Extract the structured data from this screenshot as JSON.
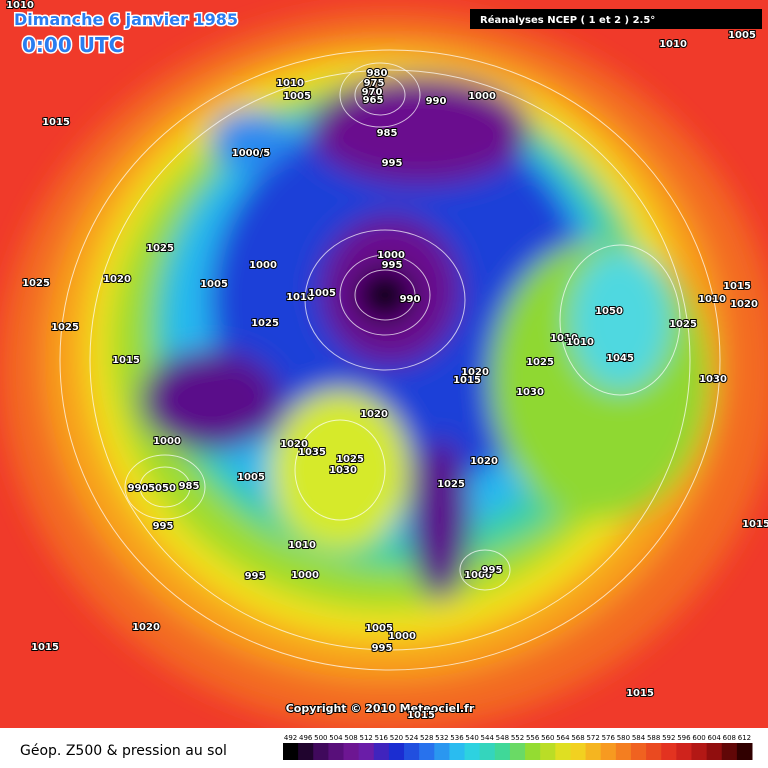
{
  "header": {
    "date": "Dimanche 6 janvier 1985",
    "time": "0:00 UTC",
    "source": "Réanalyses NCEP ( 1 et 2 ) 2.5°"
  },
  "copyright": "Copyright © 2010 Meteociel.fr",
  "footer": {
    "title": "Géop. Z500 & pression au sol"
  },
  "scale": {
    "labels": [
      492,
      496,
      500,
      504,
      508,
      512,
      516,
      520,
      524,
      528,
      532,
      536,
      540,
      544,
      548,
      552,
      556,
      560,
      564,
      568,
      572,
      576,
      580,
      584,
      588,
      592,
      596,
      600,
      604,
      608,
      612
    ]
  },
  "isobar_labels": [
    "1010",
    "1005",
    "1010",
    "1015",
    "1010",
    "1005",
    "980",
    "975",
    "970",
    "965",
    "990",
    "1000",
    "985",
    "995",
    "1000/5",
    "1025",
    "1020",
    "1025",
    "1000",
    "1005",
    "1010",
    "1005",
    "1000",
    "995",
    "990",
    "1025",
    "1025",
    "1015",
    "1050",
    "1025",
    "1015",
    "1010",
    "1020",
    "1010",
    "1010",
    "1025",
    "1045",
    "1020",
    "1015",
    "1030",
    "1030",
    "1020",
    "1000",
    "1020",
    "1035",
    "1025",
    "1030",
    "1005",
    "1020",
    "1025",
    "990",
    "5050",
    "985",
    "995",
    "1015",
    "1010",
    "995",
    "1000",
    "1000",
    "995",
    "1020",
    "1005",
    "1000",
    "995",
    "1015",
    "1015",
    "1015"
  ]
}
